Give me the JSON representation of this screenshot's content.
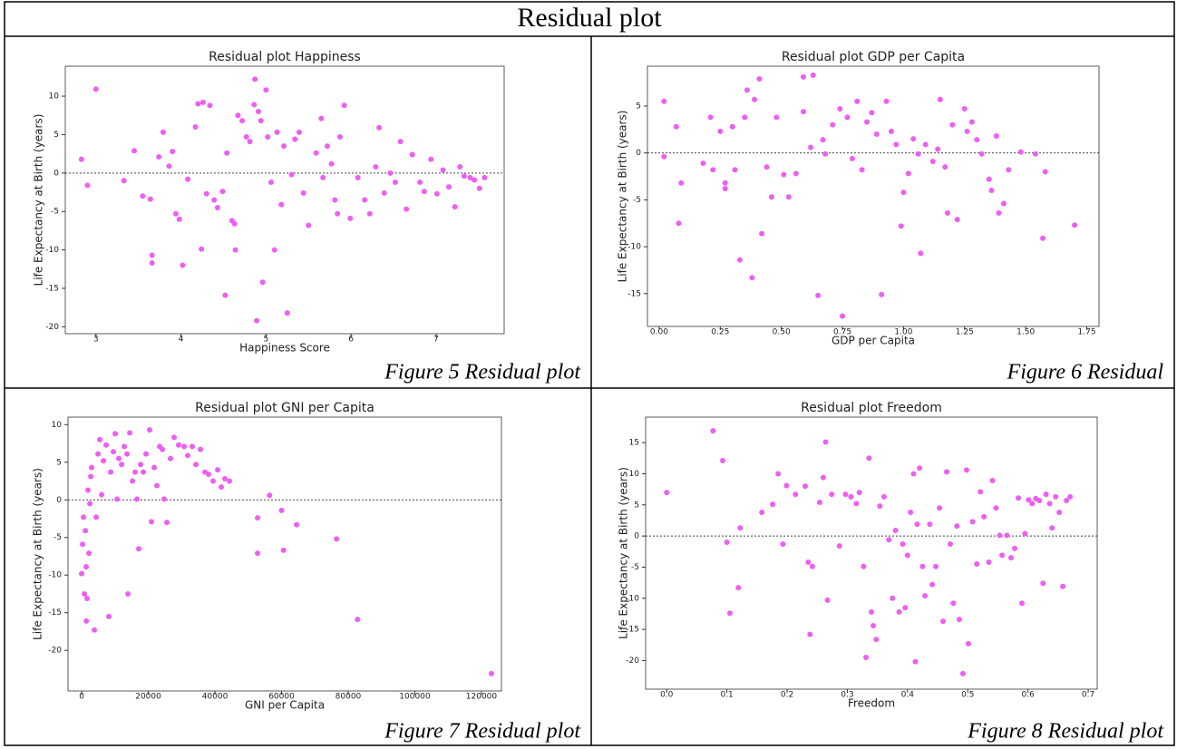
{
  "title": "Residual plot",
  "chart_data": [
    {
      "type": "scatter",
      "title": "Residual plot Happiness",
      "xlabel": "Happiness Score",
      "ylabel": "Life Expectancy at Birth (years)",
      "caption": "Figure 5 Residual plot",
      "color": "#ee5ef2",
      "hline": 0,
      "xlim": [
        2.64,
        7.8
      ],
      "ylim": [
        -20.9,
        13.9
      ],
      "xticks": [
        3,
        4,
        5,
        6,
        7
      ],
      "yticks": [
        -20,
        -15,
        -10,
        -5,
        0,
        5,
        10
      ],
      "x": [
        2.83,
        2.9,
        3.0,
        3.33,
        3.45,
        3.55,
        3.64,
        3.66,
        3.66,
        3.74,
        3.79,
        3.86,
        3.9,
        3.94,
        3.98,
        4.02,
        4.08,
        4.17,
        4.2,
        4.26,
        4.24,
        4.3,
        4.34,
        4.39,
        4.43,
        4.49,
        4.52,
        4.54,
        4.6,
        4.63,
        4.64,
        4.67,
        4.72,
        4.77,
        4.81,
        4.86,
        4.87,
        4.89,
        4.91,
        4.94,
        4.96,
        5.0,
        5.02,
        5.06,
        5.1,
        5.13,
        5.18,
        5.21,
        5.25,
        5.3,
        5.34,
        5.39,
        5.44,
        5.5,
        5.59,
        5.65,
        5.67,
        5.72,
        5.77,
        5.81,
        5.84,
        5.87,
        5.92,
        5.99,
        6.08,
        6.16,
        6.22,
        6.29,
        6.33,
        6.39,
        6.46,
        6.52,
        6.58,
        6.65,
        6.72,
        6.81,
        6.86,
        6.94,
        7.01,
        7.08,
        7.15,
        7.22,
        7.28,
        7.33,
        7.4,
        7.45,
        7.51,
        7.57
      ],
      "values": [
        1.8,
        -1.6,
        10.9,
        -1.0,
        2.9,
        -3.0,
        -3.4,
        -10.7,
        -11.7,
        2.1,
        5.3,
        0.9,
        2.8,
        -5.3,
        -6.0,
        -12.0,
        -0.8,
        6.0,
        9.0,
        9.2,
        -9.9,
        -2.7,
        8.8,
        -3.5,
        -4.5,
        -2.4,
        -15.9,
        2.6,
        -6.2,
        -6.6,
        -10.0,
        7.5,
        6.8,
        4.7,
        4.1,
        8.9,
        12.2,
        -19.2,
        8.0,
        6.8,
        -14.2,
        10.8,
        4.7,
        -1.2,
        -10.0,
        5.3,
        -4.1,
        3.5,
        -18.2,
        -0.2,
        4.4,
        5.3,
        -2.6,
        -6.8,
        2.6,
        7.1,
        -0.6,
        3.5,
        1.2,
        -3.5,
        -5.3,
        4.7,
        8.8,
        -5.9,
        -0.6,
        -3.5,
        -5.3,
        0.8,
        5.9,
        -2.6,
        0.0,
        -1.2,
        4.1,
        -4.7,
        2.4,
        -1.2,
        -2.4,
        1.8,
        -2.7,
        0.4,
        -1.8,
        -4.4,
        0.8,
        -0.4,
        -0.6,
        -0.9,
        -2.0,
        -0.6
      ]
    },
    {
      "type": "scatter",
      "title": "Residual plot GDP per Capita",
      "xlabel": "GDP per Capita",
      "ylabel": "Life Expectancy at Birth (years)",
      "caption": "Figure 6 Residual",
      "color": "#ee5ef2",
      "hline": 0,
      "xlim": [
        -0.048,
        1.8
      ],
      "ylim": [
        -18.5,
        9.25
      ],
      "xticks": [
        {
          "value": 0,
          "label": "0.00"
        },
        0.25,
        {
          "value": 0.5,
          "label": "0.50"
        },
        0.75,
        {
          "value": 1,
          "label": "1.00"
        },
        1.25,
        {
          "value": 1.5,
          "label": "1.50"
        },
        1.75
      ],
      "yticks": [
        -15,
        -10,
        -5,
        0,
        5
      ],
      "x": [
        0.02,
        0.02,
        0.07,
        0.08,
        0.09,
        0.18,
        0.21,
        0.22,
        0.25,
        0.27,
        0.27,
        0.3,
        0.31,
        0.33,
        0.35,
        0.36,
        0.38,
        0.39,
        0.41,
        0.42,
        0.44,
        0.46,
        0.48,
        0.51,
        0.53,
        0.56,
        0.59,
        0.59,
        0.62,
        0.63,
        0.65,
        0.67,
        0.68,
        0.71,
        0.74,
        0.75,
        0.77,
        0.79,
        0.81,
        0.83,
        0.85,
        0.87,
        0.89,
        0.91,
        0.93,
        0.95,
        0.97,
        0.99,
        1.0,
        1.02,
        1.04,
        1.06,
        1.07,
        1.09,
        1.12,
        1.14,
        1.15,
        1.17,
        1.18,
        1.2,
        1.22,
        1.25,
        1.26,
        1.28,
        1.3,
        1.32,
        1.35,
        1.36,
        1.38,
        1.39,
        1.41,
        1.43,
        1.48,
        1.54,
        1.57,
        1.58,
        1.7
      ],
      "values": [
        5.5,
        -0.4,
        2.8,
        -7.5,
        -3.2,
        -1.1,
        3.8,
        -1.8,
        2.3,
        -3.2,
        -3.8,
        2.8,
        -1.8,
        -11.4,
        3.8,
        6.7,
        -13.3,
        5.7,
        7.9,
        -8.6,
        -1.5,
        -4.7,
        3.8,
        -2.3,
        -4.7,
        -2.2,
        8.1,
        4.4,
        0.6,
        8.3,
        -15.2,
        1.4,
        -0.1,
        3.0,
        4.7,
        -17.4,
        3.8,
        -0.6,
        5.5,
        -1.8,
        3.3,
        4.3,
        2.0,
        -15.1,
        5.5,
        2.3,
        0.9,
        -7.8,
        -4.2,
        -2.2,
        1.5,
        -0.1,
        -10.7,
        0.9,
        -0.9,
        0.4,
        5.7,
        -1.5,
        -6.4,
        3.0,
        -7.1,
        4.7,
        2.3,
        3.3,
        1.4,
        -0.1,
        -2.8,
        -4.0,
        1.8,
        -6.4,
        -5.4,
        -1.8,
        0.1,
        -0.1,
        -9.1,
        -2.0,
        -7.7
      ]
    },
    {
      "type": "scatter",
      "title": "Residual plot GNI per Capita",
      "xlabel": "GNI per Capita",
      "ylabel": "Life Expectancy at Birth (years)",
      "caption": "Figure 7 Residual plot",
      "color": "#ee5ef2",
      "hline": 0,
      "xlim": [
        -4100,
        126000
      ],
      "ylim": [
        -25.4,
        11.0
      ],
      "xticks": [
        0,
        20000,
        40000,
        60000,
        80000,
        100000,
        120000
      ],
      "yticks": [
        -20,
        -15,
        -10,
        -5,
        0,
        5,
        10
      ],
      "x": [
        0,
        270,
        540,
        820,
        1090,
        1360,
        1630,
        1900,
        2180,
        2450,
        2720,
        2990,
        1400,
        3810,
        4350,
        4900,
        5440,
        5990,
        6530,
        7350,
        8160,
        8710,
        9520,
        10070,
        10610,
        11160,
        11970,
        12790,
        13600,
        13880,
        14420,
        15240,
        16050,
        16600,
        17140,
        17690,
        18500,
        19320,
        20410,
        20950,
        21770,
        22580,
        23400,
        24220,
        24760,
        25580,
        26660,
        27750,
        29110,
        30750,
        31830,
        33200,
        34280,
        35640,
        37000,
        38100,
        39450,
        40820,
        41900,
        42990,
        44350,
        52800,
        52800,
        56400,
        60000,
        60600,
        64500,
        76500,
        82800,
        123000
      ],
      "values": [
        -9.8,
        -5.9,
        -2.3,
        -12.5,
        -4.1,
        -8.9,
        -13.1,
        1.3,
        -7.1,
        -0.5,
        3.1,
        4.3,
        -16.1,
        -17.3,
        -2.3,
        6.1,
        8.0,
        0.7,
        5.2,
        7.3,
        -15.5,
        3.7,
        6.4,
        8.8,
        0.1,
        5.5,
        4.7,
        7.1,
        6.1,
        -12.5,
        8.9,
        2.5,
        3.7,
        0.1,
        -6.5,
        4.7,
        3.7,
        6.1,
        9.3,
        -2.9,
        4.3,
        1.9,
        7.1,
        6.7,
        0.1,
        -3.0,
        5.5,
        8.3,
        7.3,
        7.1,
        5.9,
        7.1,
        4.7,
        6.7,
        3.7,
        3.4,
        2.5,
        4.0,
        1.7,
        2.8,
        2.5,
        -2.4,
        -7.1,
        0.6,
        -1.4,
        -6.7,
        -3.3,
        -5.2,
        -15.9,
        -23.1
      ]
    },
    {
      "type": "scatter",
      "title": "Residual plot Freedom",
      "xlabel": "Freedom",
      "ylabel": "Life Expectancy at Birth (years)",
      "caption": "Figure 8 Residual plot",
      "color": "#ee5ef2",
      "hline": 0,
      "xlim": [
        -0.035,
        0.715
      ],
      "ylim": [
        -24.6,
        19.1
      ],
      "xticks": [
        {
          "value": 0,
          "label": "0.0"
        },
        0.1,
        0.2,
        0.3,
        0.4,
        0.5,
        0.6,
        0.7
      ],
      "yticks": [
        -20,
        -15,
        -10,
        -5,
        0,
        5,
        10,
        15
      ],
      "x": [
        0.0,
        0.077,
        0.093,
        0.1,
        0.105,
        0.119,
        0.122,
        0.158,
        0.176,
        0.185,
        0.193,
        0.199,
        0.214,
        0.23,
        0.235,
        0.238,
        0.242,
        0.254,
        0.26,
        0.264,
        0.267,
        0.274,
        0.287,
        0.297,
        0.306,
        0.315,
        0.32,
        0.327,
        0.331,
        0.336,
        0.34,
        0.343,
        0.348,
        0.354,
        0.361,
        0.369,
        0.375,
        0.38,
        0.386,
        0.392,
        0.396,
        0.4,
        0.405,
        0.41,
        0.413,
        0.416,
        0.42,
        0.425,
        0.429,
        0.437,
        0.441,
        0.447,
        0.453,
        0.459,
        0.465,
        0.471,
        0.476,
        0.482,
        0.486,
        0.492,
        0.498,
        0.501,
        0.508,
        0.515,
        0.521,
        0.527,
        0.535,
        0.541,
        0.547,
        0.553,
        0.557,
        0.565,
        0.572,
        0.578,
        0.584,
        0.59,
        0.595,
        0.601,
        0.607,
        0.613,
        0.619,
        0.625,
        0.63,
        0.636,
        0.64,
        0.646,
        0.652,
        0.658,
        0.664,
        0.67
      ],
      "values": [
        7.0,
        16.9,
        12.1,
        -1.0,
        -12.4,
        -8.3,
        1.3,
        3.8,
        5.1,
        10.0,
        -1.3,
        8.1,
        6.7,
        8.0,
        -4.2,
        -15.8,
        -4.9,
        5.4,
        9.4,
        15.1,
        -10.3,
        6.7,
        -1.6,
        6.7,
        6.3,
        5.2,
        7.0,
        -4.9,
        -19.5,
        12.5,
        -12.2,
        -14.4,
        -16.6,
        4.8,
        6.3,
        -0.6,
        -10.0,
        0.9,
        -12.2,
        -1.3,
        -11.5,
        -3.1,
        3.8,
        10.0,
        -20.2,
        1.9,
        10.9,
        -4.9,
        -9.6,
        1.9,
        -7.8,
        -4.9,
        4.5,
        -13.7,
        10.3,
        -1.3,
        -10.8,
        1.6,
        -13.4,
        -22.1,
        10.6,
        -17.3,
        2.3,
        -4.5,
        7.1,
        3.1,
        -4.2,
        8.9,
        4.5,
        0.1,
        -3.1,
        0.1,
        -3.5,
        -2.0,
        6.1,
        -10.8,
        0.4,
        5.8,
        5.2,
        6.0,
        5.7,
        -7.6,
        6.7,
        5.2,
        1.3,
        6.3,
        3.8,
        -8.1,
        5.7,
        6.3
      ]
    }
  ]
}
